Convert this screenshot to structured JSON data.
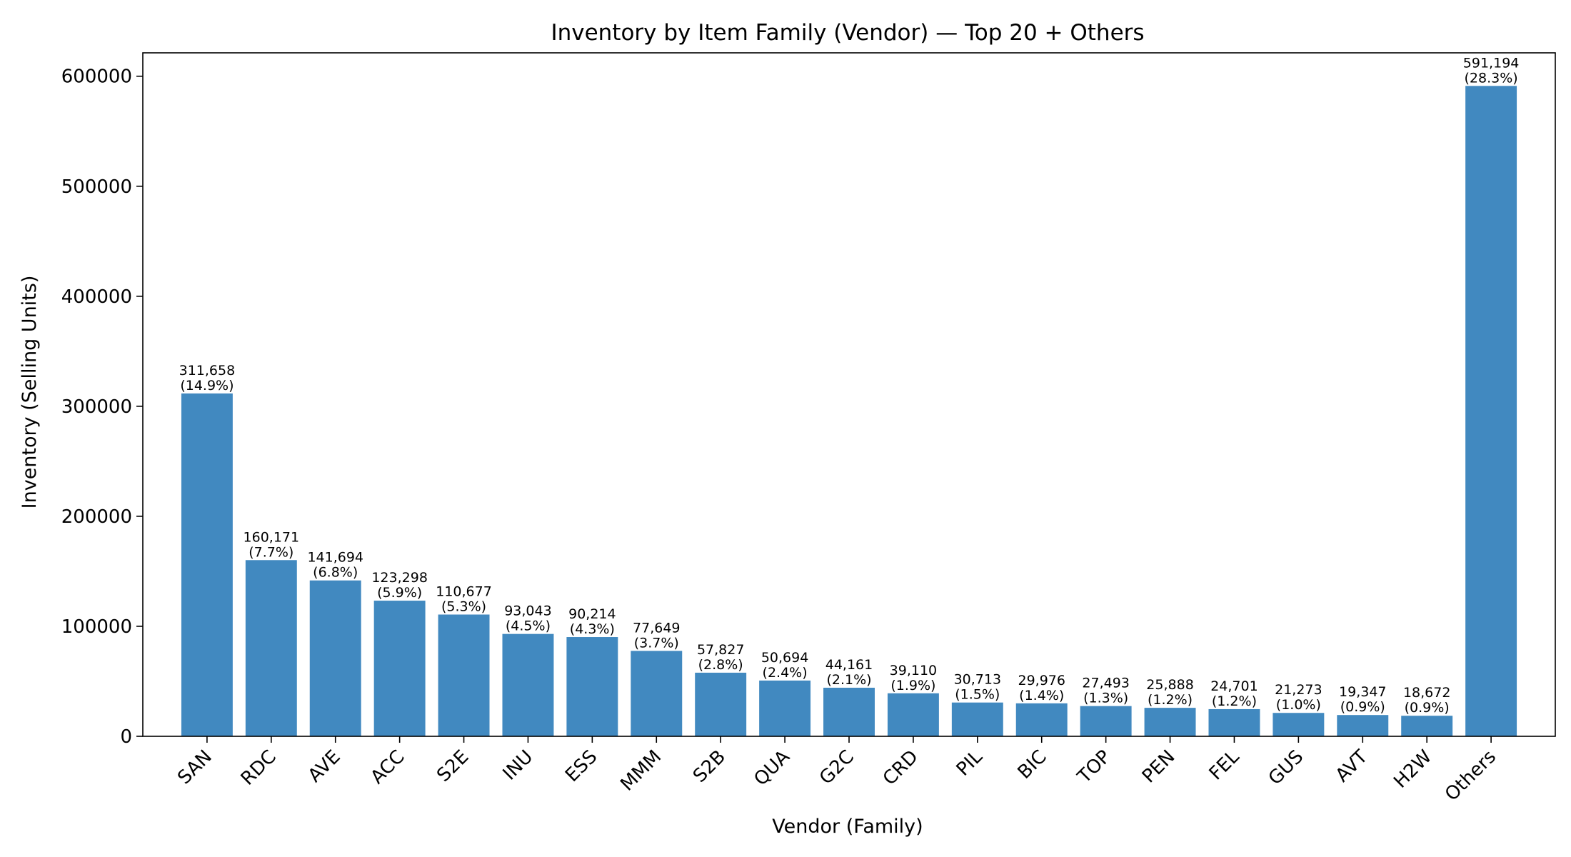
{
  "chart_data": {
    "type": "bar",
    "title": "Inventory by Item Family (Vendor) — Top 20 + Others",
    "xlabel": "Vendor (Family)",
    "ylabel": "Inventory (Selling Units)",
    "ylim": [
      0,
      621254
    ],
    "yticks": [
      0,
      100000,
      200000,
      300000,
      400000,
      500000,
      600000
    ],
    "ytick_labels": [
      "0",
      "100000",
      "200000",
      "300000",
      "400000",
      "500000",
      "600000"
    ],
    "categories": [
      "SAN",
      "RDC",
      "AVE",
      "ACC",
      "S2E",
      "INU",
      "ESS",
      "MMM",
      "S2B",
      "QUA",
      "G2C",
      "CRD",
      "PIL",
      "BIC",
      "TOP",
      "PEN",
      "FEL",
      "GUS",
      "AVT",
      "H2W",
      "Others"
    ],
    "values": [
      311658,
      160171,
      141694,
      123298,
      110677,
      93043,
      90214,
      77649,
      57827,
      50694,
      44161,
      39110,
      30713,
      29976,
      27493,
      25888,
      24701,
      21273,
      19347,
      18672,
      591194
    ],
    "value_labels": [
      "311,658",
      "160,171",
      "141,694",
      "123,298",
      "110,677",
      "93,043",
      "90,214",
      "77,649",
      "57,827",
      "50,694",
      "44,161",
      "39,110",
      "30,713",
      "29,976",
      "27,493",
      "25,888",
      "24,701",
      "21,273",
      "19,347",
      "18,672",
      "591,194"
    ],
    "percent_labels": [
      "(14.9%)",
      "(7.7%)",
      "(6.8%)",
      "(5.9%)",
      "(5.3%)",
      "(4.5%)",
      "(4.3%)",
      "(3.7%)",
      "(2.8%)",
      "(2.4%)",
      "(2.1%)",
      "(1.9%)",
      "(1.5%)",
      "(1.4%)",
      "(1.3%)",
      "(1.2%)",
      "(1.2%)",
      "(1.0%)",
      "(0.9%)",
      "(0.9%)",
      "(28.3%)"
    ],
    "bar_color": "#4189c0",
    "grid": false,
    "legend": false
  }
}
